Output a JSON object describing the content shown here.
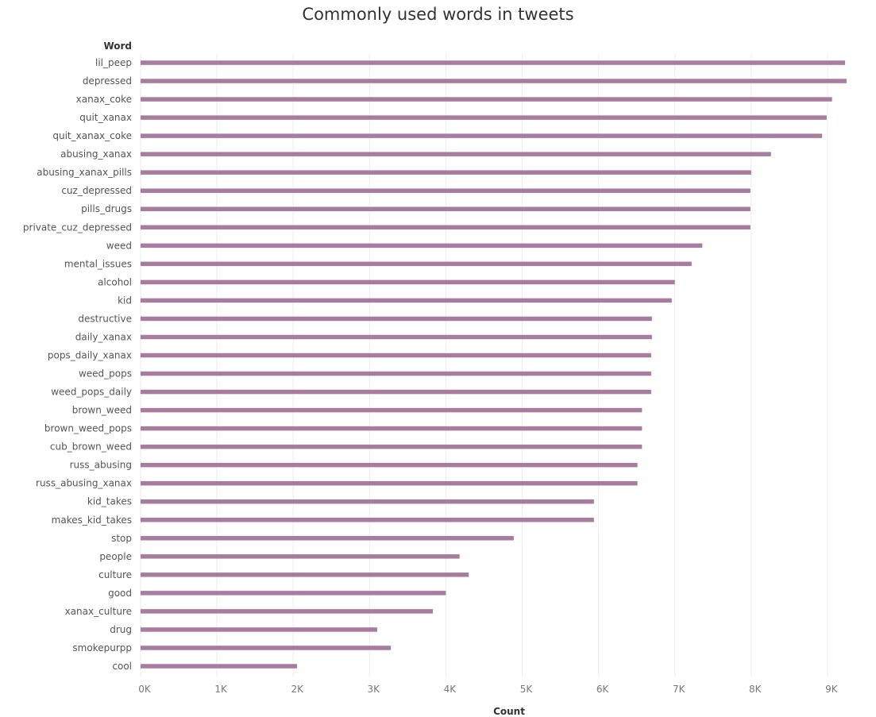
{
  "chart_data": {
    "type": "bar",
    "orientation": "horizontal",
    "title": "Commonly used words in tweets",
    "ylabel": "Word",
    "xlabel": "Count",
    "xlim": [
      0,
      9500
    ],
    "x_ticks": [
      0,
      1000,
      2000,
      3000,
      4000,
      5000,
      6000,
      7000,
      8000,
      9000
    ],
    "x_tick_labels": [
      "0K",
      "1K",
      "2K",
      "3K",
      "4K",
      "5K",
      "6K",
      "7K",
      "8K",
      "9K"
    ],
    "grid": "vertical",
    "bar_color": "#a87c9f",
    "categories": [
      "lil_peep",
      "depressed",
      "xanax_coke",
      "quit_xanax",
      "quit_xanax_coke",
      "abusing_xanax",
      "abusing_xanax_pills",
      "cuz_depressed",
      "pills_drugs",
      "private_cuz_depressed",
      "weed",
      "mental_issues",
      "alcohol",
      "kid",
      "destructive",
      "daily_xanax",
      "pops_daily_xanax",
      "weed_pops",
      "weed_pops_daily",
      "brown_weed",
      "brown_weed_pops",
      "cub_brown_weed",
      "russ_abusing",
      "russ_abusing_xanax",
      "kid_takes",
      "makes_kid_takes",
      "stop",
      "people",
      "culture",
      "good",
      "xanax_culture",
      "drug",
      "smokepurpp",
      "cool"
    ],
    "values": [
      9230,
      9250,
      9060,
      8990,
      8930,
      8260,
      8000,
      7990,
      7990,
      7990,
      7360,
      7220,
      7000,
      6960,
      6700,
      6700,
      6690,
      6690,
      6690,
      6570,
      6570,
      6570,
      6510,
      6510,
      5940,
      5940,
      4890,
      4180,
      4300,
      4000,
      3830,
      3100,
      3280,
      2050
    ]
  }
}
